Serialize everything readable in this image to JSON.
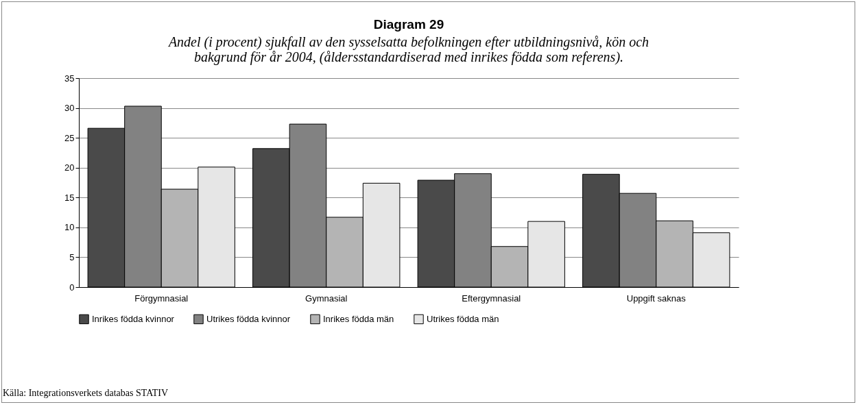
{
  "chart_data": {
    "type": "bar",
    "title": "Diagram 29",
    "subtitle": "Andel (i procent) sjukfall av den sysselsatta befolkningen efter utbildningsnivå, kön och bakgrund för år 2004, (åldersstandardiserad med inrikes födda som referens).",
    "categories": [
      "Förgymnasial",
      "Gymnasial",
      "Eftergymnasial",
      "Uppgift saknas"
    ],
    "series": [
      {
        "name": "Inrikes födda kvinnor",
        "color": "#4a4a4a",
        "values": [
          26.6,
          23.2,
          17.9,
          18.9
        ]
      },
      {
        "name": "Utrikes födda kvinnor",
        "color": "#828282",
        "values": [
          30.3,
          27.3,
          19.0,
          15.7
        ]
      },
      {
        "name": "Inrikes födda män",
        "color": "#b4b4b4",
        "values": [
          16.4,
          11.7,
          6.8,
          11.1
        ]
      },
      {
        "name": "Utrikes födda män",
        "color": "#e6e6e6",
        "values": [
          20.1,
          17.4,
          11.0,
          9.1
        ]
      }
    ],
    "ylim": [
      0,
      35
    ],
    "yticks": [
      0,
      5,
      10,
      15,
      20,
      25,
      30,
      35
    ],
    "grid": "y",
    "legend": "bottom",
    "annotations": [
      "Källa: Integrationsverkets databas STATIV"
    ]
  }
}
